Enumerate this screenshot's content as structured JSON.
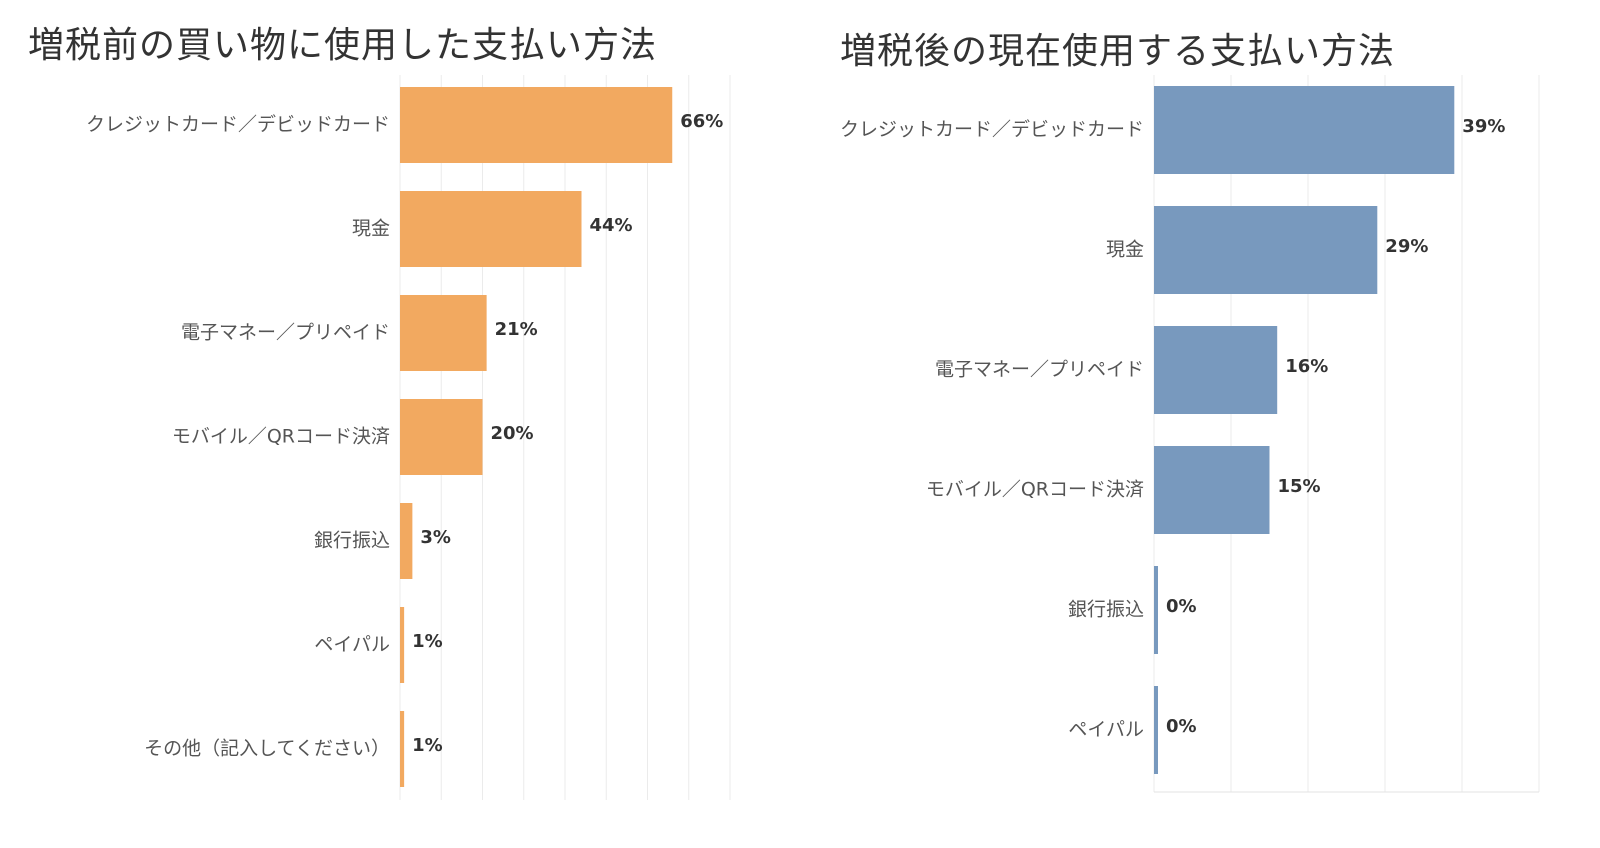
{
  "chart_data": [
    {
      "type": "bar",
      "orientation": "horizontal",
      "title": "増税前の買い物に使用した支払い方法",
      "color": "#F2A960",
      "categories": [
        "クレジットカード／デビッドカード",
        "現金",
        "電子マネー／プリペイド",
        "モバイル／QRコード決済",
        "銀行振込",
        "ペイパル",
        "その他（記入してください）"
      ],
      "values": [
        66,
        44,
        21,
        20,
        3,
        1,
        1
      ],
      "labels": [
        "66%",
        "44%",
        "21%",
        "20%",
        "3%",
        "1%",
        "1%"
      ],
      "xlim": [
        0,
        80
      ],
      "grid": true,
      "unit": "%"
    },
    {
      "type": "bar",
      "orientation": "horizontal",
      "title": "増税後の現在使用する支払い方法",
      "color": "#7899BE",
      "categories": [
        "クレジットカード／デビッドカード",
        "現金",
        "電子マネー／プリペイド",
        "モバイル／QRコード決済",
        "銀行振込",
        "ペイパル"
      ],
      "values": [
        39,
        29,
        16,
        15,
        0,
        0
      ],
      "labels": [
        "39%",
        "29%",
        "16%",
        "15%",
        "0%",
        "0%"
      ],
      "xlim": [
        0,
        50
      ],
      "grid": true,
      "unit": "%"
    }
  ]
}
